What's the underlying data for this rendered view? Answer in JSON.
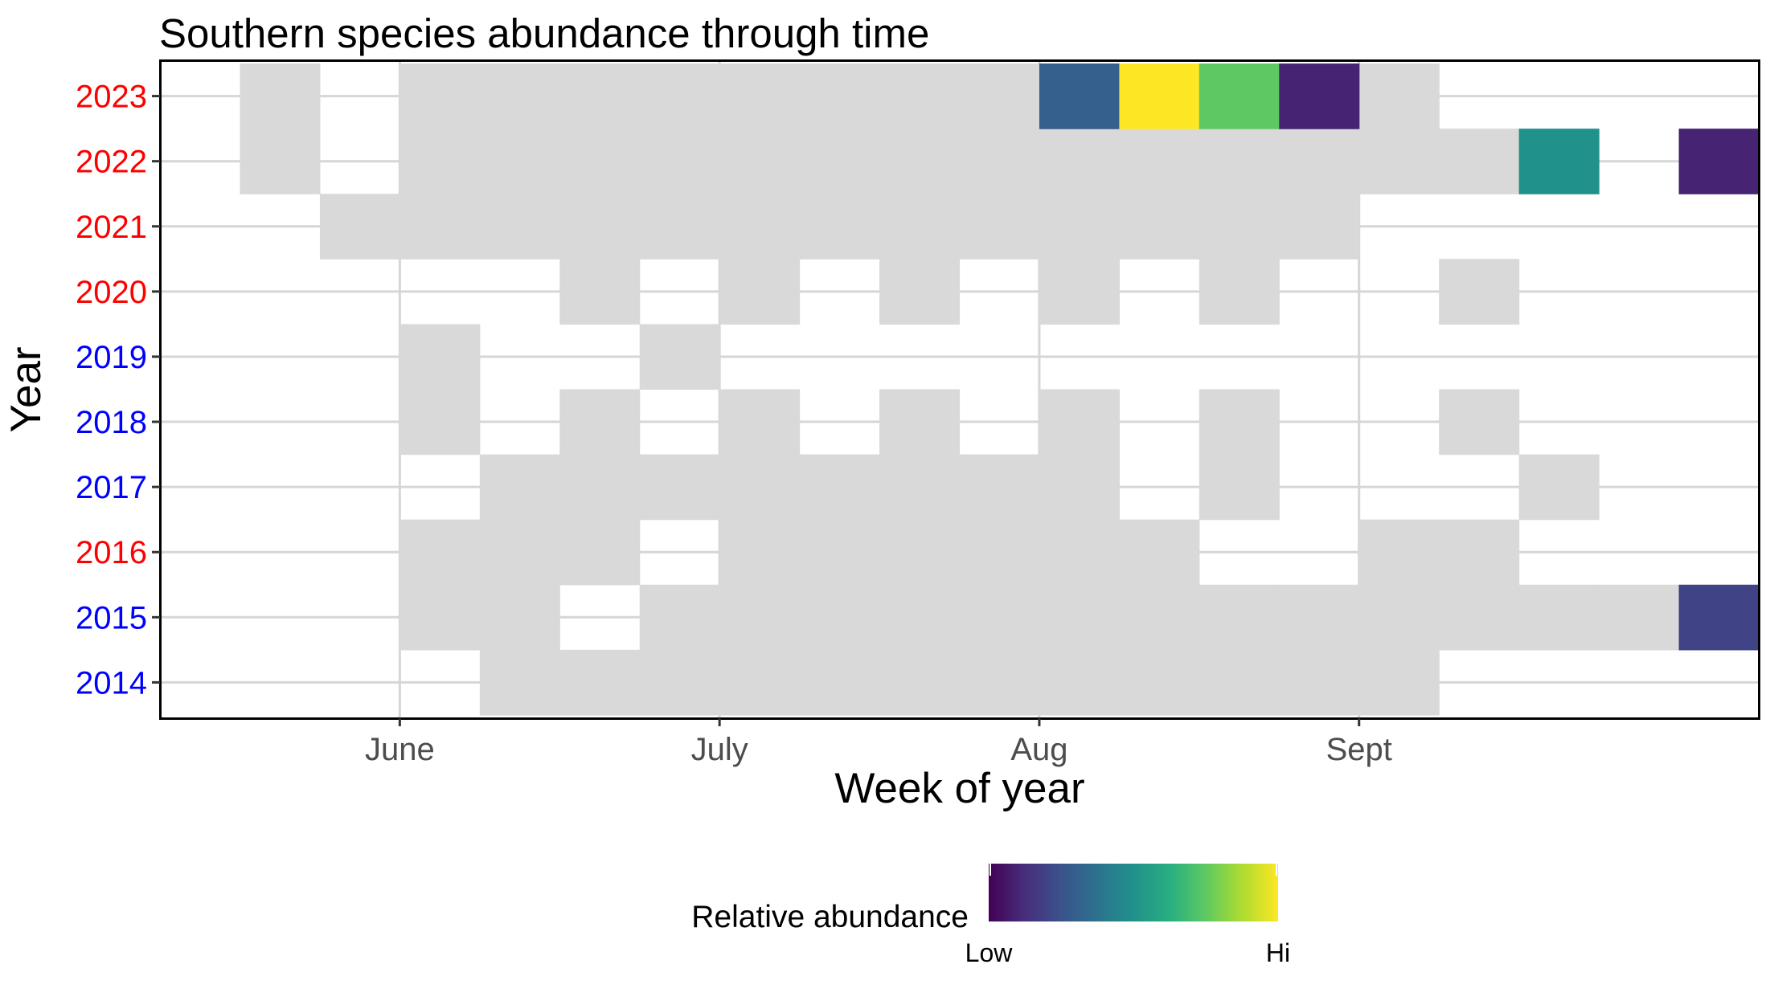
{
  "chart_data": {
    "type": "heatmap",
    "title": "Southern species abundance through time",
    "xlabel": "Week of year",
    "ylabel": "Year",
    "x_tick_labels": [
      "June",
      "July",
      "Aug",
      "Sept"
    ],
    "x_tick_weeks": [
      22.5,
      26.5,
      30.5,
      34.5
    ],
    "week_range": [
      20,
      39
    ],
    "years": [
      2014,
      2015,
      2016,
      2017,
      2018,
      2019,
      2020,
      2021,
      2022,
      2023
    ],
    "year_label_colors": {
      "2014": "#0000ff",
      "2015": "#0000ff",
      "2016": "#ff0000",
      "2017": "#0000ff",
      "2018": "#0000ff",
      "2019": "#0000ff",
      "2020": "#ff0000",
      "2021": "#ff0000",
      "2022": "#ff0000",
      "2023": "#ff0000"
    },
    "sampled_weeks": {
      "2023": [
        21,
        23,
        24,
        25,
        26,
        27,
        28,
        29,
        30,
        35
      ],
      "2022": [
        21,
        23,
        24,
        25,
        26,
        27,
        28,
        29,
        30,
        31,
        32,
        33,
        34,
        35,
        36
      ],
      "2021": [
        22,
        23,
        24,
        25,
        26,
        27,
        28,
        29,
        30,
        31,
        32,
        33,
        34
      ],
      "2020": [
        25,
        27,
        29,
        31,
        33,
        36
      ],
      "2019": [
        23,
        26
      ],
      "2018": [
        23,
        25,
        27,
        29,
        31,
        33,
        36
      ],
      "2017": [
        24,
        25,
        26,
        27,
        28,
        29,
        30,
        31,
        33,
        37
      ],
      "2016": [
        23,
        24,
        25,
        27,
        28,
        29,
        30,
        31,
        32,
        35,
        36
      ],
      "2015": [
        23,
        24,
        26,
        27,
        28,
        29,
        30,
        31,
        32,
        33,
        34,
        35,
        36,
        37,
        38
      ],
      "2014": [
        24,
        25,
        26,
        27,
        28,
        29,
        30,
        31,
        32,
        33,
        34,
        35
      ]
    },
    "observations": [
      {
        "year": 2023,
        "week": 31,
        "abundance": 0.3
      },
      {
        "year": 2023,
        "week": 32,
        "abundance": 1.0
      },
      {
        "year": 2023,
        "week": 33,
        "abundance": 0.75
      },
      {
        "year": 2023,
        "week": 34,
        "abundance": 0.1
      },
      {
        "year": 2022,
        "week": 37,
        "abundance": 0.5
      },
      {
        "year": 2022,
        "week": 39,
        "abundance": 0.1
      },
      {
        "year": 2015,
        "week": 39,
        "abundance": 0.2
      }
    ],
    "sampled_color": "#d9d9d9",
    "grid": true,
    "legend": {
      "title": "Relative abundance",
      "low_label": "Low",
      "high_label": "Hi",
      "placement": "bottom",
      "palette": "viridis"
    }
  }
}
